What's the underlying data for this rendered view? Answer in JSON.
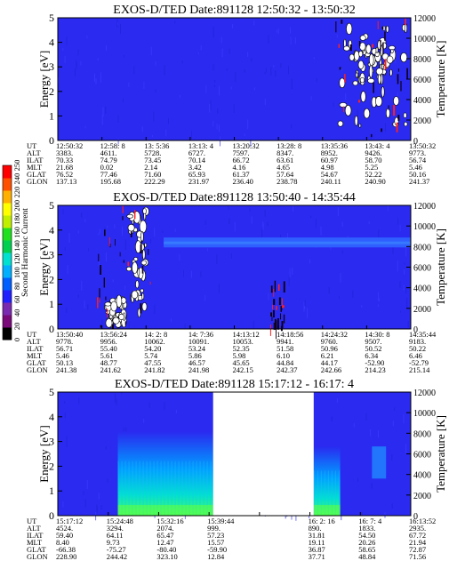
{
  "colorbar": {
    "label": "Second Harmonic Current",
    "ticks": [
      "0",
      "20",
      "40",
      "60",
      "80",
      "100",
      "120",
      "140",
      "160",
      "180",
      "200",
      "220",
      "240",
      "250"
    ],
    "stops": [
      "#000000",
      "#7a0a7a",
      "#7a2ab0",
      "#2020ff",
      "#0060ff",
      "#00b0ff",
      "#00e0d0",
      "#00d050",
      "#20e020",
      "#c0f000",
      "#ffff00",
      "#ffb000",
      "#ff5000",
      "#ff0000"
    ]
  },
  "chart_data": [
    {
      "type": "heatmap",
      "title": "EXOS-D/TED   Date:891128  12:50:32 - 13:50:32",
      "ylabel": "Energy [eV]",
      "y2label": "Temperature [K]",
      "ylim": [
        0,
        5
      ],
      "y2lim": [
        0,
        12000
      ],
      "yticks": [
        "0",
        "1",
        "2",
        "3",
        "4",
        "5"
      ],
      "y2ticks": [
        "0",
        "2000",
        "4000",
        "6000",
        "8000",
        "10000",
        "12000"
      ],
      "background_color": "#2a2af0",
      "features": [
        {
          "kind": "white",
          "t0": 0.8,
          "t1": 0.99,
          "e0": 0.6,
          "e1": 4.6
        },
        {
          "kind": "white",
          "t0": 0.83,
          "t1": 0.95,
          "e0": 2.4,
          "e1": 3.9
        },
        {
          "kind": "dark",
          "t0": 0.78,
          "t1": 0.99,
          "e0": 0.2,
          "e1": 5.0
        }
      ],
      "table": {
        "rows": [
          "UT",
          "ALT",
          "ILAT",
          "MLT",
          "GLAT",
          "GLON"
        ],
        "columns": [
          [
            "12:50:32",
            "3383.",
            "70.33",
            "21.68",
            "76.52",
            "137.13"
          ],
          [
            "12:58: 8",
            "4611.",
            "74.79",
            "0.02",
            "77.46",
            "195.68"
          ],
          [
            "13: 5:36",
            "5728.",
            "73.45",
            "2.14",
            "71.60",
            "222.29"
          ],
          [
            "13:13: 4",
            "6727.",
            "70.14",
            "3.42",
            "65.93",
            "231.97"
          ],
          [
            "13:20:32",
            "7597.",
            "66.72",
            "4.16",
            "61.37",
            "236.40"
          ],
          [
            "13:28: 8",
            "8347.",
            "63.61",
            "4.65",
            "57.64",
            "238.78"
          ],
          [
            "13:35:36",
            "8952.",
            "60.97",
            "4.98",
            "54.67",
            "240.11"
          ],
          [
            "13:43: 4",
            "9426.",
            "58.70",
            "5.25",
            "52.22",
            "240.90"
          ],
          [
            "13:50:32",
            "9773.",
            "56.74",
            "5.46",
            "50.16",
            "241.37"
          ]
        ]
      }
    },
    {
      "type": "heatmap",
      "title": "EXOS-D/TED   Date:891128  13:50:40 - 14:35:44",
      "ylabel": "Energy [eV]",
      "y2label": "Temperature [K]",
      "ylim": [
        0,
        5
      ],
      "y2lim": [
        0,
        12000
      ],
      "yticks": [
        "0",
        "1",
        "2",
        "3",
        "4",
        "5"
      ],
      "y2ticks": [
        "0",
        "2000",
        "4000",
        "6000",
        "8000",
        "10000",
        "12000"
      ],
      "background_color": "#2a2af0",
      "features": [
        {
          "kind": "band",
          "t0": 0.3,
          "t1": 1.0,
          "e0": 3.3,
          "e1": 3.7
        },
        {
          "kind": "white",
          "t0": 0.2,
          "t1": 0.25,
          "e0": 0.3,
          "e1": 4.9
        },
        {
          "kind": "white",
          "t0": 0.14,
          "t1": 0.19,
          "e0": 0.2,
          "e1": 1.2
        },
        {
          "kind": "dark",
          "t0": 0.11,
          "t1": 0.27,
          "e0": 0.1,
          "e1": 5.0
        },
        {
          "kind": "dark",
          "t0": 0.6,
          "t1": 0.64,
          "e0": 0.0,
          "e1": 2.0
        }
      ],
      "table": {
        "rows": [
          "UT",
          "ALT",
          "ILAT",
          "MLT",
          "GLAT",
          "GLON"
        ],
        "columns": [
          [
            "13:50:40",
            "9778.",
            "56.71",
            "5.46",
            "50.13",
            "241.38"
          ],
          [
            "13:56:24",
            "9956.",
            "55.40",
            "5.61",
            "48.77",
            "241.62"
          ],
          [
            "14: 2: 8",
            "10062.",
            "54.20",
            "5.74",
            "47.55",
            "241.82"
          ],
          [
            "14: 7:36",
            "10091.",
            "53.24",
            "5.86",
            "46.57",
            "241.98"
          ],
          [
            "14:13:12",
            "10053.",
            "52.35",
            "5.98",
            "45.65",
            "242.15"
          ],
          [
            "14:18:56",
            "9941.",
            "51.58",
            "6.10",
            "44.84",
            "242.37"
          ],
          [
            "14:24:32",
            "9760.",
            "50.96",
            "6.21",
            "44.17",
            "242.66"
          ],
          [
            "14:30: 8",
            "9507.",
            "50.52",
            "6.34",
            "-52.90",
            "214.23"
          ],
          [
            "14:35:44",
            "9183.",
            "50.22",
            "6.46",
            "-52.79",
            "215.14"
          ]
        ]
      }
    },
    {
      "type": "heatmap",
      "title": "EXOS-D/TED   Date:891128  15:17:12 - 16:17: 4",
      "ylabel": "Energy [eV]",
      "y2label": "Temperature [K]",
      "ylim": [
        0,
        5
      ],
      "y2lim": [
        0,
        12000
      ],
      "yticks": [
        "0",
        "1",
        "2",
        "3",
        "4",
        "5"
      ],
      "y2ticks": [
        "0",
        "2000",
        "4000",
        "6000",
        "8000",
        "10000",
        "12000"
      ],
      "background_color": "#2a2af0",
      "gaps": [
        {
          "t0": 0.44,
          "t1": 0.725
        }
      ],
      "features": [
        {
          "kind": "grad",
          "t0": 0.17,
          "t1": 0.44,
          "e0": 0.0,
          "e1": 3.4
        },
        {
          "kind": "grad",
          "t0": 0.725,
          "t1": 0.8,
          "e0": 0.0,
          "e1": 2.8
        },
        {
          "kind": "cyan",
          "t0": 0.89,
          "t1": 0.93,
          "e0": 1.5,
          "e1": 2.8
        }
      ],
      "table": {
        "rows": [
          "UT",
          "ALT",
          "ILAT",
          "MLT",
          "GLAT",
          "GLON"
        ],
        "columns": [
          [
            "15:17:12",
            "4524.",
            "59.40",
            "8.40",
            "-66.38",
            "228.90"
          ],
          [
            "15:24:48",
            "3294.",
            "64.11",
            "9.73",
            "-75.27",
            "244.42"
          ],
          [
            "15:32:16",
            "2074.",
            "65.47",
            "12.47",
            "-80.40",
            "323.10"
          ],
          [
            "15:39:44",
            "999.",
            "57.23",
            "15.57",
            "-59.90",
            "12.84"
          ],
          [
            "",
            "",
            "",
            "",
            "",
            ""
          ],
          [
            "16: 2: 16",
            "890.",
            "31.81",
            "19.11",
            "36.87",
            "37.71"
          ],
          [
            "16: 7: 4",
            "1833.",
            "54.50",
            "20.26",
            "58.65",
            "48.84"
          ],
          [
            "16:13:52",
            "2935.",
            "67.72",
            "21.94",
            "72.87",
            "71.56"
          ]
        ]
      }
    }
  ]
}
